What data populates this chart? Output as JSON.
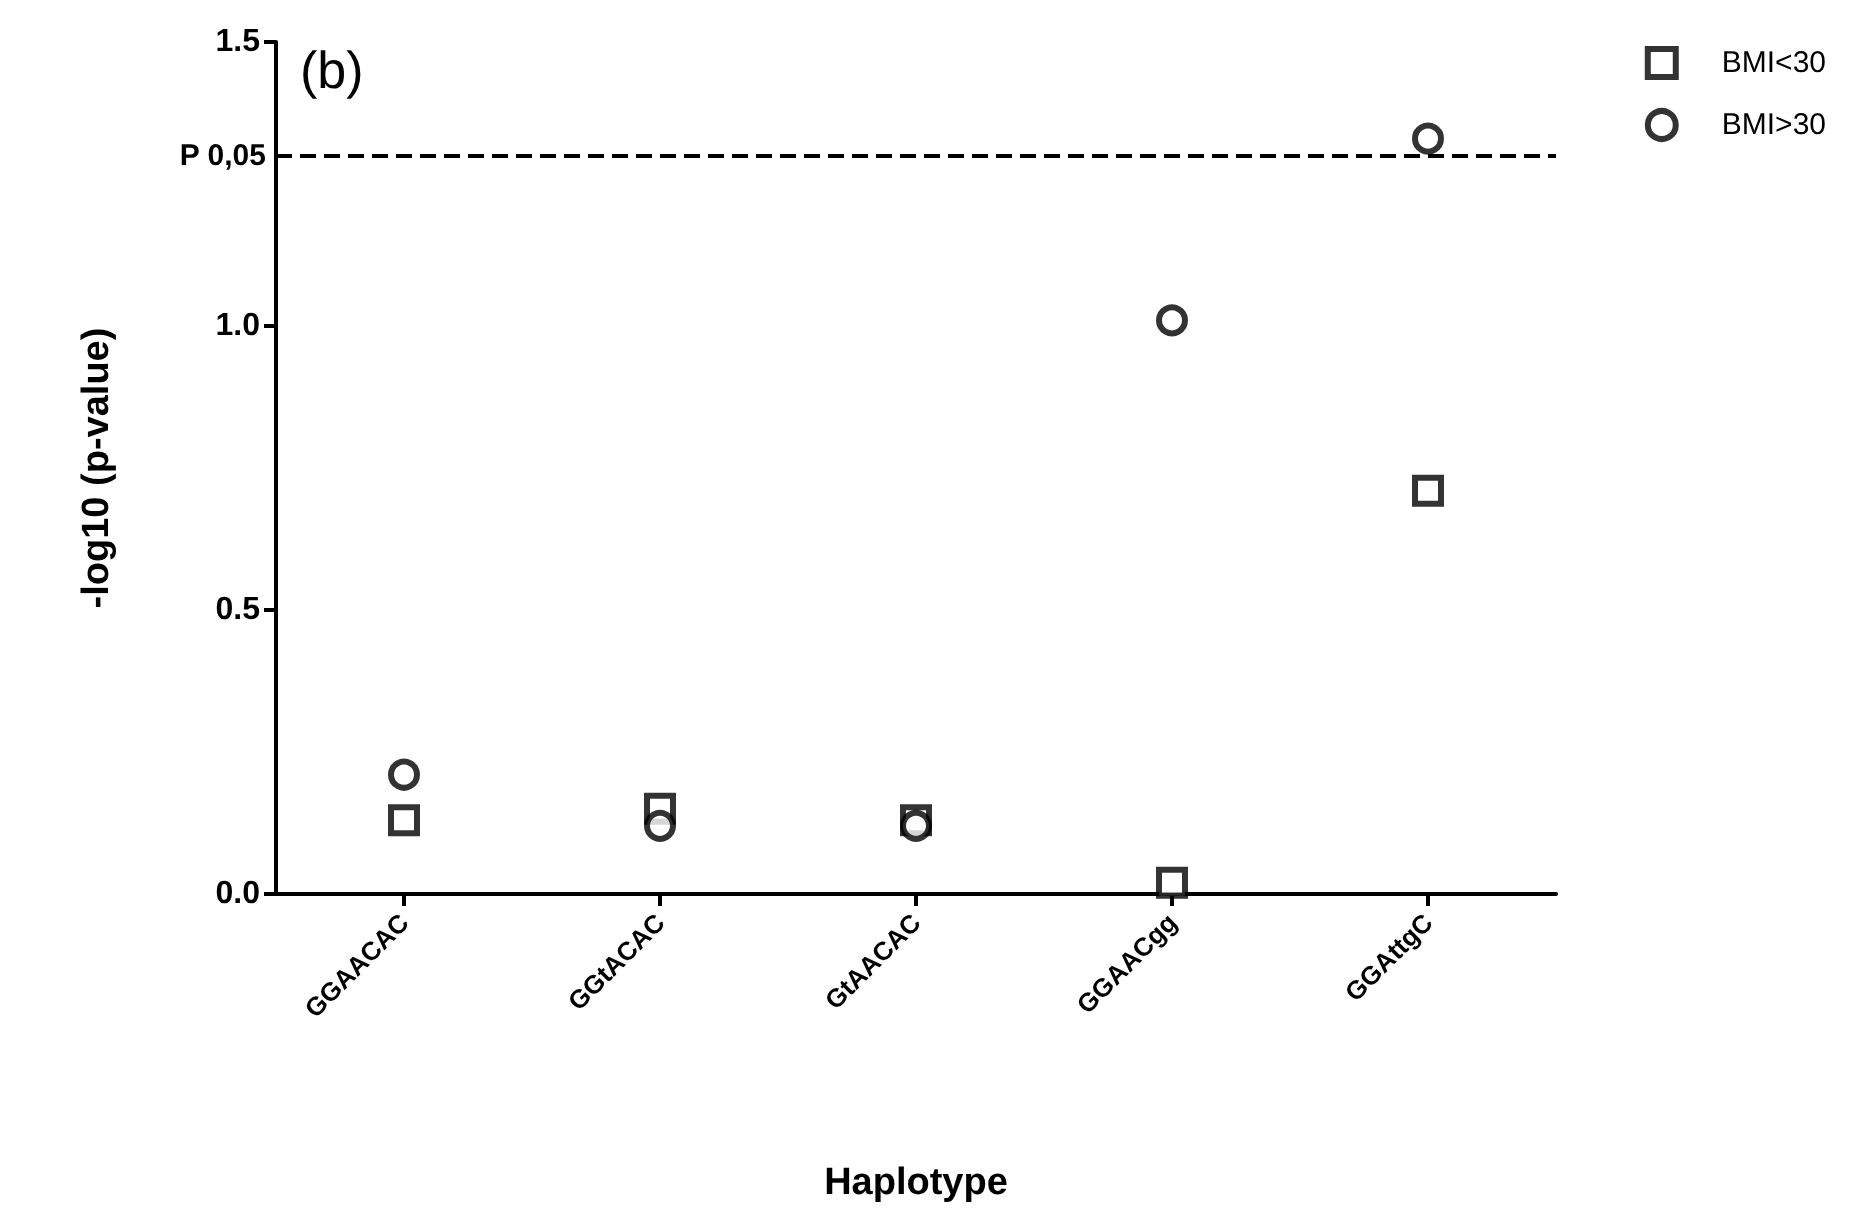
{
  "chart_data": {
    "type": "scatter",
    "xlabel": "Haplotype",
    "ylabel": "-log10 (p-value)",
    "annotations": [
      "(b)"
    ],
    "categories": [
      "GGAACAC",
      "GGtACAC",
      "GtAACAC",
      "GGAACgg",
      "GGAttgC"
    ],
    "series": [
      {
        "name": "BMI<30",
        "color": "#000000",
        "marker": "square",
        "values": [
          0.13,
          0.15,
          0.13,
          0.02,
          0.71
        ]
      },
      {
        "name": "BMI>30",
        "color": "#000000",
        "marker": "circle",
        "values": [
          0.21,
          0.12,
          0.12,
          1.01,
          1.33
        ]
      }
    ],
    "ylim": [
      0,
      1.5
    ],
    "yticks": [
      {
        "value": 0,
        "label": "0.0"
      },
      {
        "value": 0.5,
        "label": "0.5"
      },
      {
        "value": 1,
        "label": "1.0"
      },
      {
        "value": 1.5,
        "label": "1.5"
      }
    ],
    "ref_lines": [
      {
        "axis": "y",
        "value": 1.3,
        "label": "P 0,05",
        "color": "#000000",
        "line_style": "dashed"
      }
    ],
    "grid": false,
    "legend": "top right"
  }
}
